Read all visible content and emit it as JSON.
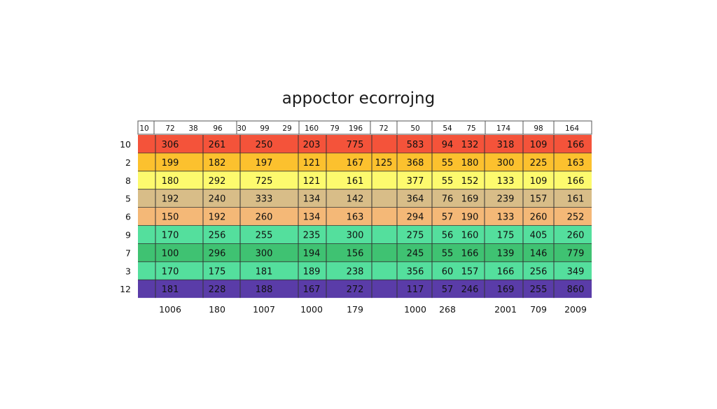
{
  "chart_data": {
    "type": "heatmap",
    "title": "appoctor ecorrojng",
    "header_labels": [
      "10",
      "72",
      "38",
      "96",
      "30",
      "99",
      "29",
      "160",
      "79",
      "196",
      "72",
      "50",
      "54",
      "75",
      "174",
      "98",
      "164"
    ],
    "row_labels": [
      "10",
      "2",
      "8",
      "5",
      "6",
      "9",
      "7",
      "3",
      "12"
    ],
    "row_colors": [
      "#f4533a",
      "#fcc12e",
      "#fdfa6e",
      "#d8bd88",
      "#f4b877",
      "#54df9d",
      "#3fc272",
      "#54df9d",
      "#5a3ca8"
    ],
    "rows": [
      [
        "306",
        "261",
        "250",
        "203",
        "775",
        "",
        "583",
        "94",
        "132",
        "318",
        "109",
        "166"
      ],
      [
        "199",
        "182",
        "197",
        "121",
        "167",
        "125",
        "368",
        "55",
        "180",
        "300",
        "225",
        "163"
      ],
      [
        "180",
        "292",
        "725",
        "121",
        "161",
        "",
        "377",
        "55",
        "152",
        "133",
        "109",
        "166"
      ],
      [
        "192",
        "240",
        "333",
        "134",
        "142",
        "",
        "364",
        "76",
        "169",
        "239",
        "157",
        "161"
      ],
      [
        "150",
        "192",
        "260",
        "134",
        "163",
        "",
        "294",
        "57",
        "190",
        "133",
        "260",
        "252"
      ],
      [
        "170",
        "256",
        "255",
        "235",
        "300",
        "",
        "275",
        "56",
        "160",
        "175",
        "405",
        "260"
      ],
      [
        "100",
        "296",
        "300",
        "194",
        "156",
        "",
        "245",
        "55",
        "166",
        "139",
        "146",
        "779"
      ],
      [
        "170",
        "175",
        "181",
        "189",
        "238",
        "",
        "356",
        "60",
        "157",
        "166",
        "256",
        "349"
      ],
      [
        "181",
        "228",
        "188",
        "167",
        "272",
        "",
        "117",
        "57",
        "246",
        "169",
        "255",
        "860"
      ]
    ],
    "footer_labels": [
      "1006",
      "180",
      "1007",
      "1000",
      "179",
      "",
      "1000",
      "268",
      "",
      "2001",
      "709",
      "2009"
    ]
  }
}
